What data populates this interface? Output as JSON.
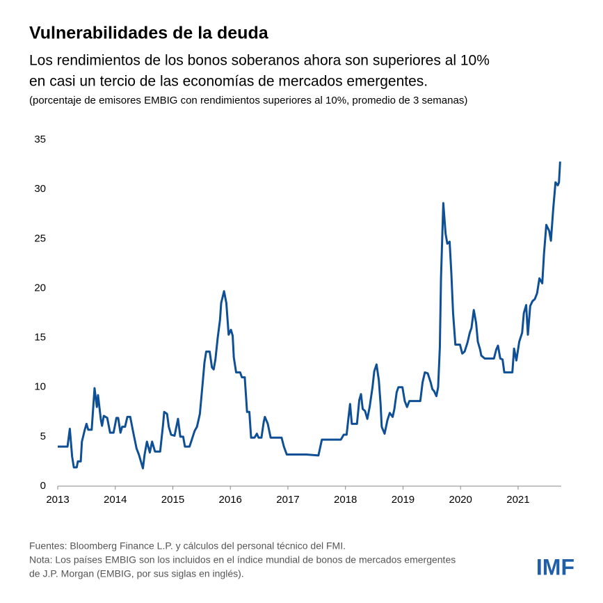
{
  "chart_data": {
    "type": "line",
    "title": "Vulnerabilidades de la deuda",
    "subtitle": [
      "Los rendimientos de los bonos soberanos ahora son superiores al 10%",
      "en casi un tercio de las economías de mercados emergentes."
    ],
    "y_label": "(porcentaje de emisores EMBIG con rendimientos superiores al 10%, promedio de 3 semanas)",
    "x": [
      2013.0,
      2013.17,
      2013.21,
      2013.25,
      2013.28,
      2013.33,
      2013.35,
      2013.4,
      2013.42,
      2013.47,
      2013.5,
      2013.53,
      2013.59,
      2013.64,
      2013.68,
      2013.7,
      2013.75,
      2013.77,
      2013.8,
      2013.86,
      2013.91,
      2013.97,
      2014.02,
      2014.05,
      2014.09,
      2014.12,
      2014.17,
      2014.21,
      2014.26,
      2014.31,
      2014.37,
      2014.41,
      2014.48,
      2014.51,
      2014.55,
      2014.6,
      2014.64,
      2014.69,
      2014.78,
      2014.83,
      2014.85,
      2014.9,
      2014.93,
      2014.97,
      2015.03,
      2015.09,
      2015.13,
      2015.18,
      2015.21,
      2015.29,
      2015.33,
      2015.38,
      2015.42,
      2015.47,
      2015.52,
      2015.55,
      2015.58,
      2015.64,
      2015.68,
      2015.71,
      2015.74,
      2015.78,
      2015.82,
      2015.84,
      2015.89,
      2015.93,
      2015.97,
      2016.01,
      2016.04,
      2016.06,
      2016.1,
      2016.17,
      2016.2,
      2016.25,
      2016.29,
      2016.33,
      2016.36,
      2016.42,
      2016.46,
      2016.49,
      2016.54,
      2016.58,
      2016.6,
      2016.65,
      2016.7,
      2016.89,
      2016.93,
      2016.98,
      2017.32,
      2017.53,
      2017.59,
      2017.92,
      2017.97,
      2018.02,
      2018.05,
      2018.08,
      2018.11,
      2018.2,
      2018.24,
      2018.27,
      2018.3,
      2018.34,
      2018.38,
      2018.42,
      2018.47,
      2018.5,
      2018.54,
      2018.58,
      2018.61,
      2018.63,
      2018.68,
      2018.73,
      2018.77,
      2018.82,
      2018.85,
      2018.89,
      2018.92,
      2018.99,
      2019.03,
      2019.07,
      2019.11,
      2019.3,
      2019.34,
      2019.38,
      2019.43,
      2019.48,
      2019.51,
      2019.54,
      2019.58,
      2019.61,
      2019.64,
      2019.66,
      2019.7,
      2019.74,
      2019.77,
      2019.81,
      2019.84,
      2019.87,
      2019.91,
      2019.99,
      2020.03,
      2020.07,
      2020.12,
      2020.16,
      2020.19,
      2020.23,
      2020.27,
      2020.3,
      2020.34,
      2020.36,
      2020.42,
      2020.58,
      2020.62,
      2020.65,
      2020.69,
      2020.73,
      2020.76,
      2020.9,
      2020.93,
      2020.97,
      2021.02,
      2021.07,
      2021.1,
      2021.14,
      2021.17,
      2021.21,
      2021.25,
      2021.29,
      2021.33,
      2021.37,
      2021.42,
      2021.45,
      2021.49,
      2021.54,
      2021.57,
      2021.61,
      2021.65,
      2021.69,
      2021.71,
      2021.73
    ],
    "series": [
      {
        "name": "EMBIG",
        "color": "#0e4f96",
        "values": [
          4.0,
          4.0,
          5.8,
          3.0,
          1.9,
          1.9,
          2.5,
          2.5,
          4.5,
          5.7,
          6.3,
          5.7,
          5.7,
          9.9,
          8.0,
          9.2,
          6.7,
          6.1,
          7.1,
          6.9,
          5.4,
          5.4,
          6.9,
          6.9,
          5.4,
          6.0,
          6.0,
          7.0,
          7.0,
          5.5,
          3.8,
          3.2,
          1.8,
          3.2,
          4.5,
          3.4,
          4.5,
          3.5,
          3.5,
          6.2,
          7.5,
          7.3,
          6.0,
          5.2,
          5.1,
          6.8,
          5.0,
          5.0,
          4.0,
          4.0,
          4.7,
          5.6,
          6.0,
          7.3,
          10.5,
          12.5,
          13.6,
          13.6,
          12.0,
          11.8,
          12.8,
          15.0,
          16.8,
          18.5,
          19.7,
          18.5,
          15.3,
          15.8,
          15.2,
          13.0,
          11.5,
          11.5,
          11.0,
          11.0,
          7.5,
          7.5,
          4.9,
          4.9,
          5.3,
          4.9,
          4.9,
          6.5,
          7.0,
          6.3,
          4.9,
          4.9,
          4.0,
          3.2,
          3.2,
          3.1,
          4.7,
          4.7,
          5.2,
          5.2,
          6.8,
          8.3,
          6.3,
          6.3,
          8.7,
          9.3,
          7.8,
          7.6,
          6.8,
          8.0,
          10.0,
          11.6,
          12.3,
          10.7,
          8.3,
          6.0,
          5.3,
          6.7,
          7.4,
          7.0,
          7.8,
          9.5,
          10.0,
          10.0,
          8.6,
          8.0,
          8.6,
          8.6,
          10.5,
          11.5,
          11.4,
          10.5,
          9.8,
          9.6,
          9.1,
          10.0,
          14.0,
          21.0,
          28.6,
          25.5,
          24.5,
          24.7,
          21.5,
          17.5,
          14.3,
          14.3,
          13.4,
          13.6,
          14.5,
          15.5,
          16.0,
          17.8,
          16.5,
          14.6,
          13.8,
          13.2,
          12.9,
          12.9,
          13.8,
          14.2,
          12.9,
          12.8,
          11.5,
          11.5,
          13.9,
          12.7,
          14.6,
          15.5,
          17.5,
          18.3,
          15.3,
          18.2,
          18.7,
          18.9,
          19.5,
          21.0,
          20.5,
          23.5,
          26.4,
          25.8,
          24.8,
          28.0,
          30.7,
          30.4,
          30.7,
          32.8
        ]
      }
    ],
    "xlim": [
      2013,
      2021.75
    ],
    "xticks": [
      2013,
      2014,
      2015,
      2016,
      2017,
      2018,
      2019,
      2020,
      2021
    ],
    "ylim": [
      0,
      35
    ],
    "yticks": [
      0,
      5,
      10,
      15,
      20,
      25,
      30,
      35
    ],
    "grid": false,
    "notes": [
      "Fuentes: Bloomberg Finance L.P. y cálculos del personal técnico del FMI.",
      "Nota: Los países EMBIG son los incluidos en el índice mundial de bonos de mercados emergentes",
      "de J.P. Morgan (EMBIG, por sus siglas en inglés)."
    ],
    "logo": "IMF"
  }
}
